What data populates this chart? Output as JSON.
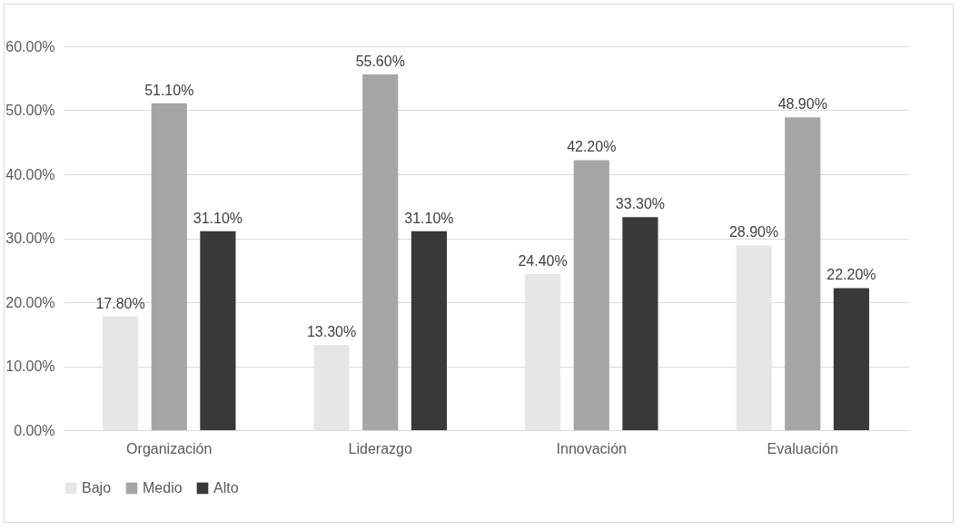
{
  "chart_data": {
    "type": "bar",
    "categories": [
      "Organización",
      "Liderazgo",
      "Innovación",
      "Evaluación"
    ],
    "series": [
      {
        "name": "Bajo",
        "color": "#e7e6e6",
        "values": [
          17.8,
          13.3,
          24.4,
          28.9
        ],
        "value_labels": [
          "17.80%",
          "13.30%",
          "24.40%",
          "28.90%"
        ]
      },
      {
        "name": "Medio",
        "color": "#a5a5a5",
        "values": [
          51.1,
          55.6,
          42.2,
          48.9
        ],
        "value_labels": [
          "51.10%",
          "55.60%",
          "42.20%",
          "48.90%"
        ]
      },
      {
        "name": "Alto",
        "color": "#3b3838",
        "values": [
          31.1,
          31.1,
          33.3,
          22.2
        ],
        "value_labels": [
          "31.10%",
          "31.10%",
          "33.30%",
          "22.20%"
        ]
      }
    ],
    "ylim": [
      0,
      60
    ],
    "yticks": [
      {
        "value": 0,
        "label": "0.00%"
      },
      {
        "value": 10,
        "label": "10.00%"
      },
      {
        "value": 20,
        "label": "20.00%"
      },
      {
        "value": 30,
        "label": "30.00%"
      },
      {
        "value": 40,
        "label": "40.00%"
      },
      {
        "value": 50,
        "label": "50.00%"
      },
      {
        "value": 60,
        "label": "60.00%"
      }
    ],
    "grid": "y",
    "legend": "bottom"
  }
}
